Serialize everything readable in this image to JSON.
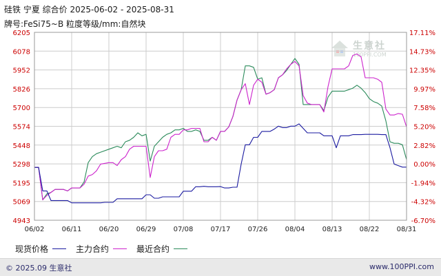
{
  "header": {
    "title": "硅铁 宁夏 综合价 2025-06-02 - 2025-08-31",
    "subtitle": "牌号:FeSi75~B 粒度等级/mm:自然块"
  },
  "watermark": {
    "text": "生意社",
    "url": "100PPI.COM"
  },
  "footer": {
    "copyright": "© 2025.09 生意社",
    "site": "www.100PPI.com"
  },
  "colors": {
    "spot": "#1a1aa0",
    "main": "#cc22cc",
    "recent": "#2a8a5a",
    "grid": "#cccccc",
    "tick": "#cc0000"
  },
  "chart_data": {
    "type": "line",
    "title": "硅铁 宁夏 综合价 2025-06-02 - 2025-08-31",
    "y_ticks": [
      "6205",
      "6078",
      "5952",
      "5826",
      "5700",
      "5574",
      "5448",
      "5298",
      "5195",
      "5069",
      "4943"
    ],
    "y2_ticks": [
      "17.11%",
      "14.73%",
      "12.35%",
      "9.97%",
      "7.58%",
      "5.20%",
      "2.82%",
      "0.00%",
      "-1.94%",
      "-4.32%",
      "-6.70%"
    ],
    "x_ticks": [
      "06/02",
      "06/11",
      "06/20",
      "06/29",
      "07/08",
      "07/17",
      "07/26",
      "08/04",
      "08/13",
      "08/22",
      "08/31"
    ],
    "ylim": [
      4943,
      6205
    ],
    "x_range": [
      0,
      90
    ],
    "grid": true,
    "legend_position": "bottom",
    "series": [
      {
        "name": "现货价格",
        "color": "#1a1aa0",
        "points": [
          [
            0,
            5298
          ],
          [
            1,
            5298
          ],
          [
            2,
            5140
          ],
          [
            3,
            5140
          ],
          [
            4,
            5075
          ],
          [
            5,
            5075
          ],
          [
            8,
            5075
          ],
          [
            9,
            5060
          ],
          [
            11,
            5060
          ],
          [
            16,
            5060
          ],
          [
            17,
            5063
          ],
          [
            19,
            5063
          ],
          [
            20,
            5087
          ],
          [
            26,
            5087
          ],
          [
            27,
            5114
          ],
          [
            28,
            5114
          ],
          [
            29,
            5091
          ],
          [
            30,
            5091
          ],
          [
            31,
            5100
          ],
          [
            35,
            5100
          ],
          [
            36,
            5138
          ],
          [
            38,
            5138
          ],
          [
            39,
            5168
          ],
          [
            40,
            5168
          ],
          [
            41,
            5171
          ],
          [
            42,
            5168
          ],
          [
            44,
            5168
          ],
          [
            45,
            5169
          ],
          [
            46,
            5160
          ],
          [
            47,
            5160
          ],
          [
            48,
            5165
          ],
          [
            49,
            5165
          ],
          [
            50,
            5320
          ],
          [
            51,
            5450
          ],
          [
            52,
            5450
          ],
          [
            53,
            5500
          ],
          [
            54,
            5500
          ],
          [
            55,
            5540
          ],
          [
            56,
            5540
          ],
          [
            57,
            5540
          ],
          [
            58,
            5555
          ],
          [
            59,
            5575
          ],
          [
            60,
            5565
          ],
          [
            61,
            5565
          ],
          [
            62,
            5575
          ],
          [
            63,
            5575
          ],
          [
            64,
            5590
          ],
          [
            66,
            5530
          ],
          [
            69,
            5530
          ],
          [
            70,
            5510
          ],
          [
            72,
            5510
          ],
          [
            73,
            5430
          ],
          [
            74,
            5510
          ],
          [
            76,
            5510
          ],
          [
            77,
            5518
          ],
          [
            79,
            5518
          ],
          [
            80,
            5520
          ],
          [
            83,
            5520
          ],
          [
            84,
            5518
          ],
          [
            85,
            5518
          ],
          [
            86,
            5430
          ],
          [
            87,
            5320
          ],
          [
            88,
            5310
          ],
          [
            89,
            5300
          ],
          [
            90,
            5300
          ]
        ]
      },
      {
        "name": "主力合约",
        "color": "#cc22cc",
        "points": [
          [
            0,
            5298
          ],
          [
            1,
            5298
          ],
          [
            2,
            5080
          ],
          [
            3,
            5110
          ],
          [
            4,
            5130
          ],
          [
            5,
            5150
          ],
          [
            7,
            5150
          ],
          [
            8,
            5140
          ],
          [
            9,
            5160
          ],
          [
            11,
            5160
          ],
          [
            12,
            5185
          ],
          [
            13,
            5240
          ],
          [
            14,
            5250
          ],
          [
            15,
            5275
          ],
          [
            16,
            5320
          ],
          [
            18,
            5330
          ],
          [
            19,
            5330
          ],
          [
            20,
            5310
          ],
          [
            21,
            5350
          ],
          [
            22,
            5370
          ],
          [
            23,
            5420
          ],
          [
            24,
            5440
          ],
          [
            25,
            5440
          ],
          [
            26,
            5440
          ],
          [
            27,
            5440
          ],
          [
            28,
            5230
          ],
          [
            29,
            5370
          ],
          [
            30,
            5410
          ],
          [
            31,
            5410
          ],
          [
            32,
            5420
          ],
          [
            33,
            5500
          ],
          [
            34,
            5520
          ],
          [
            35,
            5520
          ],
          [
            36,
            5550
          ],
          [
            37,
            5550
          ],
          [
            38,
            5560
          ],
          [
            39,
            5560
          ],
          [
            40,
            5560
          ],
          [
            41,
            5470
          ],
          [
            42,
            5470
          ],
          [
            43,
            5500
          ],
          [
            44,
            5480
          ],
          [
            45,
            5540
          ],
          [
            46,
            5540
          ],
          [
            47,
            5570
          ],
          [
            48,
            5640
          ],
          [
            49,
            5750
          ],
          [
            50,
            5820
          ],
          [
            51,
            5860
          ],
          [
            52,
            5720
          ],
          [
            53,
            5850
          ],
          [
            54,
            5890
          ],
          [
            55,
            5870
          ],
          [
            56,
            5790
          ],
          [
            57,
            5800
          ],
          [
            58,
            5820
          ],
          [
            59,
            5900
          ],
          [
            60,
            5920
          ],
          [
            61,
            5960
          ],
          [
            62,
            5990
          ],
          [
            63,
            6010
          ],
          [
            64,
            5980
          ],
          [
            65,
            5780
          ],
          [
            66,
            5730
          ],
          [
            67,
            5720
          ],
          [
            68,
            5720
          ],
          [
            69,
            5720
          ],
          [
            70,
            5670
          ],
          [
            71,
            5840
          ],
          [
            72,
            5960
          ],
          [
            73,
            5960
          ],
          [
            74,
            5960
          ],
          [
            75,
            5960
          ],
          [
            76,
            5980
          ],
          [
            77,
            6050
          ],
          [
            78,
            6060
          ],
          [
            79,
            6040
          ],
          [
            80,
            5900
          ],
          [
            81,
            5900
          ],
          [
            82,
            5900
          ],
          [
            83,
            5890
          ],
          [
            84,
            5870
          ],
          [
            85,
            5690
          ],
          [
            86,
            5650
          ],
          [
            87,
            5650
          ],
          [
            88,
            5660
          ],
          [
            89,
            5655
          ],
          [
            90,
            5570
          ]
        ]
      },
      {
        "name": "最近合约",
        "color": "#2a8a5a",
        "points": [
          [
            0,
            5298
          ],
          [
            1,
            5298
          ],
          [
            2,
            5080
          ],
          [
            3,
            5120
          ],
          [
            4,
            5130
          ],
          [
            5,
            5150
          ],
          [
            7,
            5150
          ],
          [
            8,
            5140
          ],
          [
            9,
            5160
          ],
          [
            11,
            5160
          ],
          [
            12,
            5200
          ],
          [
            13,
            5330
          ],
          [
            14,
            5370
          ],
          [
            15,
            5390
          ],
          [
            16,
            5400
          ],
          [
            18,
            5420
          ],
          [
            19,
            5430
          ],
          [
            20,
            5440
          ],
          [
            21,
            5430
          ],
          [
            22,
            5470
          ],
          [
            23,
            5480
          ],
          [
            24,
            5500
          ],
          [
            25,
            5530
          ],
          [
            26,
            5510
          ],
          [
            27,
            5520
          ],
          [
            28,
            5340
          ],
          [
            29,
            5440
          ],
          [
            30,
            5470
          ],
          [
            31,
            5500
          ],
          [
            32,
            5520
          ],
          [
            33,
            5530
          ],
          [
            34,
            5550
          ],
          [
            35,
            5550
          ],
          [
            36,
            5560
          ],
          [
            37,
            5540
          ],
          [
            38,
            5540
          ],
          [
            39,
            5550
          ],
          [
            40,
            5540
          ],
          [
            41,
            5480
          ],
          [
            42,
            5480
          ],
          [
            43,
            5500
          ],
          [
            44,
            5480
          ],
          [
            45,
            5540
          ],
          [
            46,
            5540
          ],
          [
            47,
            5570
          ],
          [
            48,
            5640
          ],
          [
            49,
            5750
          ],
          [
            50,
            5820
          ],
          [
            51,
            5980
          ],
          [
            52,
            5980
          ],
          [
            53,
            5970
          ],
          [
            54,
            5890
          ],
          [
            55,
            5900
          ],
          [
            56,
            5790
          ],
          [
            57,
            5800
          ],
          [
            58,
            5820
          ],
          [
            59,
            5900
          ],
          [
            60,
            5920
          ],
          [
            61,
            5950
          ],
          [
            62,
            5990
          ],
          [
            63,
            6030
          ],
          [
            64,
            5990
          ],
          [
            65,
            5720
          ],
          [
            66,
            5720
          ],
          [
            67,
            5720
          ],
          [
            68,
            5720
          ],
          [
            69,
            5720
          ],
          [
            70,
            5680
          ],
          [
            71,
            5770
          ],
          [
            72,
            5810
          ],
          [
            73,
            5810
          ],
          [
            74,
            5810
          ],
          [
            75,
            5810
          ],
          [
            76,
            5820
          ],
          [
            77,
            5830
          ],
          [
            78,
            5850
          ],
          [
            79,
            5830
          ],
          [
            80,
            5800
          ],
          [
            81,
            5760
          ],
          [
            82,
            5740
          ],
          [
            83,
            5730
          ],
          [
            84,
            5710
          ],
          [
            85,
            5610
          ],
          [
            86,
            5470
          ],
          [
            87,
            5460
          ],
          [
            88,
            5460
          ],
          [
            89,
            5450
          ],
          [
            90,
            5350
          ]
        ]
      }
    ]
  }
}
